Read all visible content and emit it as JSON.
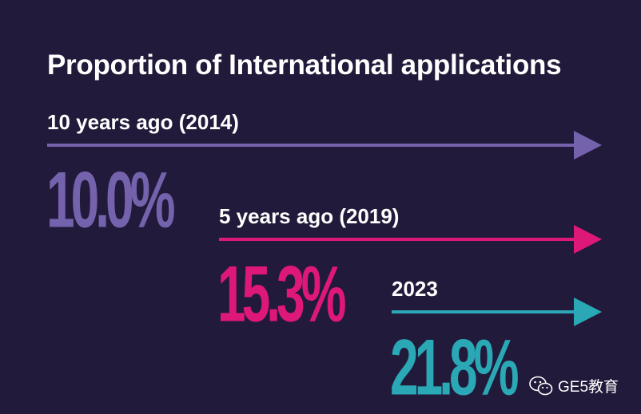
{
  "chart_data": {
    "type": "bar",
    "title": "Proportion of International applications",
    "categories": [
      "10 years ago (2014)",
      "5 years ago (2019)",
      "2023"
    ],
    "values": [
      10.0,
      15.3,
      21.8
    ],
    "value_labels": [
      "10.0%",
      "15.3%",
      "21.8%"
    ],
    "unit": "%",
    "colors": [
      "#7462ac",
      "#de1877",
      "#2aa8b6"
    ]
  },
  "watermark": {
    "icon": "wechat-icon",
    "text": "GE5教育"
  }
}
